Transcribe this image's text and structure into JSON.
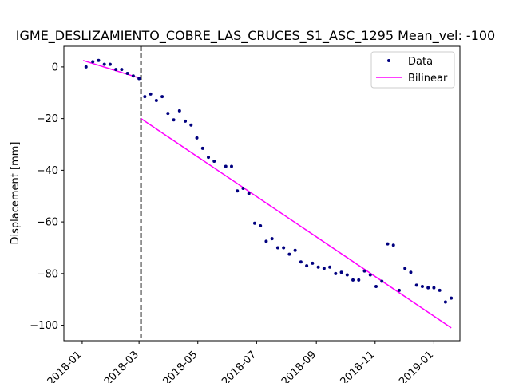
{
  "chart_data": {
    "type": "scatter",
    "title": "IGME_DESLIZAMIENTO_COBRE_LAS_CRUCES_S1_ASC_1295     Mean_vel: -100",
    "ylabel": "Displacement [mm]",
    "xlabel": "",
    "x_ticks": [
      "2018-01",
      "2018-03",
      "2018-05",
      "2018-07",
      "2018-09",
      "2018-11",
      "2019-01"
    ],
    "y_ticks": [
      0,
      -20,
      -40,
      -60,
      -80,
      -100
    ],
    "ylim": [
      -106,
      8
    ],
    "xlim": [
      "2017-12-13",
      "2019-01-28"
    ],
    "break_date": "2018-03-03",
    "grid": false,
    "legend_position": "upper right",
    "colors": {
      "data": "#00007f",
      "bilinear": "#ff00ff",
      "break_line": "#000000"
    },
    "series": [
      {
        "name": "Data",
        "style": "points",
        "points": [
          [
            "2018-01-05",
            0
          ],
          [
            "2018-01-12",
            2
          ],
          [
            "2018-01-18",
            2.5
          ],
          [
            "2018-01-24",
            1
          ],
          [
            "2018-01-30",
            1
          ],
          [
            "2018-02-05",
            -1
          ],
          [
            "2018-02-11",
            -1
          ],
          [
            "2018-02-17",
            -2.5
          ],
          [
            "2018-02-23",
            -3.5
          ],
          [
            "2018-03-01",
            -4.5
          ],
          [
            "2018-03-07",
            -11.5
          ],
          [
            "2018-03-13",
            -10.5
          ],
          [
            "2018-03-19",
            -13
          ],
          [
            "2018-03-25",
            -11.5
          ],
          [
            "2018-03-31",
            -18
          ],
          [
            "2018-04-06",
            -20.5
          ],
          [
            "2018-04-12",
            -17
          ],
          [
            "2018-04-18",
            -21
          ],
          [
            "2018-04-24",
            -22.5
          ],
          [
            "2018-04-30",
            -27.5
          ],
          [
            "2018-05-06",
            -31.5
          ],
          [
            "2018-05-12",
            -35
          ],
          [
            "2018-05-18",
            -36.5
          ],
          [
            "2018-05-30",
            -38.5
          ],
          [
            "2018-06-05",
            -38.5
          ],
          [
            "2018-06-11",
            -48
          ],
          [
            "2018-06-17",
            -47
          ],
          [
            "2018-06-23",
            -49
          ],
          [
            "2018-06-29",
            -60.5
          ],
          [
            "2018-07-05",
            -61.5
          ],
          [
            "2018-07-11",
            -67.5
          ],
          [
            "2018-07-17",
            -66.5
          ],
          [
            "2018-07-23",
            -70
          ],
          [
            "2018-07-29",
            -70
          ],
          [
            "2018-08-04",
            -72.5
          ],
          [
            "2018-08-10",
            -71
          ],
          [
            "2018-08-16",
            -75.5
          ],
          [
            "2018-08-22",
            -77
          ],
          [
            "2018-08-28",
            -76
          ],
          [
            "2018-09-03",
            -77.5
          ],
          [
            "2018-09-09",
            -78
          ],
          [
            "2018-09-15",
            -77.5
          ],
          [
            "2018-09-21",
            -80
          ],
          [
            "2018-09-27",
            -79.5
          ],
          [
            "2018-10-03",
            -80.5
          ],
          [
            "2018-10-09",
            -82.5
          ],
          [
            "2018-10-15",
            -82.5
          ],
          [
            "2018-10-21",
            -79
          ],
          [
            "2018-10-27",
            -80.5
          ],
          [
            "2018-11-02",
            -85
          ],
          [
            "2018-11-08",
            -83
          ],
          [
            "2018-11-14",
            -68.5
          ],
          [
            "2018-11-20",
            -69
          ],
          [
            "2018-11-26",
            -86.5
          ],
          [
            "2018-12-02",
            -78
          ],
          [
            "2018-12-08",
            -79.5
          ],
          [
            "2018-12-14",
            -84.5
          ],
          [
            "2018-12-20",
            -85
          ],
          [
            "2018-12-26",
            -85.5
          ],
          [
            "2019-01-01",
            -85.5
          ],
          [
            "2019-01-07",
            -86.5
          ],
          [
            "2019-01-13",
            -91
          ],
          [
            "2019-01-19",
            -89.5
          ]
        ]
      },
      {
        "name": "Bilinear",
        "style": "line",
        "segments": [
          [
            [
              "2018-01-02",
              2.5
            ],
            [
              "2018-03-03",
              -4.5
            ]
          ],
          [
            [
              "2018-03-03",
              -20
            ],
            [
              "2019-01-19",
              -101
            ]
          ]
        ]
      }
    ]
  }
}
